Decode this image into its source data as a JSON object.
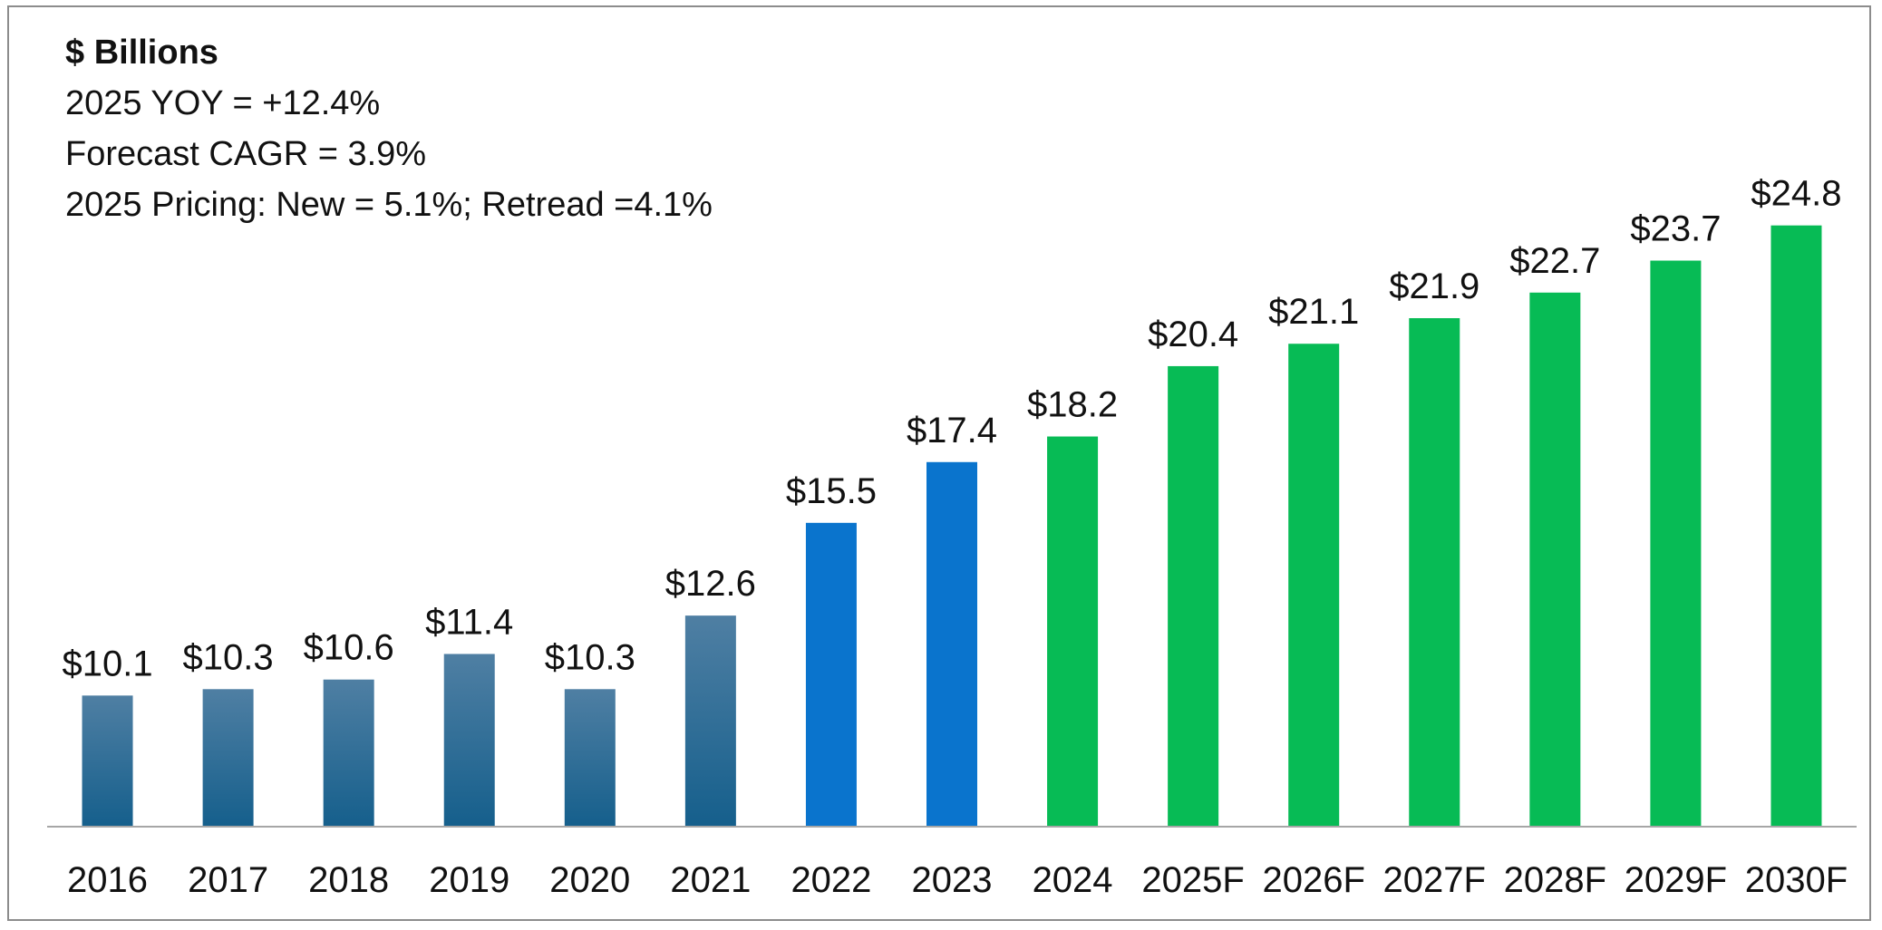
{
  "chart_data": {
    "type": "bar",
    "title": "$ Billions",
    "notes": [
      "2025 YOY = +12.4%",
      "Forecast CAGR = 3.9%",
      "2025 Pricing: New = 5.1%; Retread =4.1%"
    ],
    "categories": [
      "2016",
      "2017",
      "2018",
      "2019",
      "2020",
      "2021",
      "2022",
      "2023",
      "2024",
      "2025F",
      "2026F",
      "2027F",
      "2028F",
      "2029F",
      "2030F"
    ],
    "values": [
      10.1,
      10.3,
      10.6,
      11.4,
      10.3,
      12.6,
      15.5,
      17.4,
      18.2,
      20.4,
      21.1,
      21.9,
      22.7,
      23.7,
      24.8
    ],
    "value_labels": [
      "$10.1",
      "$10.3",
      "$10.6",
      "$11.4",
      "$10.3",
      "$12.6",
      "$15.5",
      "$17.4",
      "$18.2",
      "$20.4",
      "$21.1",
      "$21.9",
      "$22.7",
      "$23.7",
      "$24.8"
    ],
    "bar_groups": [
      "historical",
      "historical",
      "historical",
      "historical",
      "historical",
      "historical",
      "recent",
      "recent",
      "forecast",
      "forecast",
      "forecast",
      "forecast",
      "forecast",
      "forecast",
      "forecast"
    ],
    "colors": {
      "historical_top": "#4f7fa3",
      "historical_bottom": "#155f8c",
      "recent": "#0a74cd",
      "forecast": "#07bb55",
      "axis": "#a6a6a6"
    },
    "xlabel": "",
    "ylabel": "",
    "ylim": [
      6,
      25.5
    ],
    "grid": false,
    "legend": "none"
  }
}
